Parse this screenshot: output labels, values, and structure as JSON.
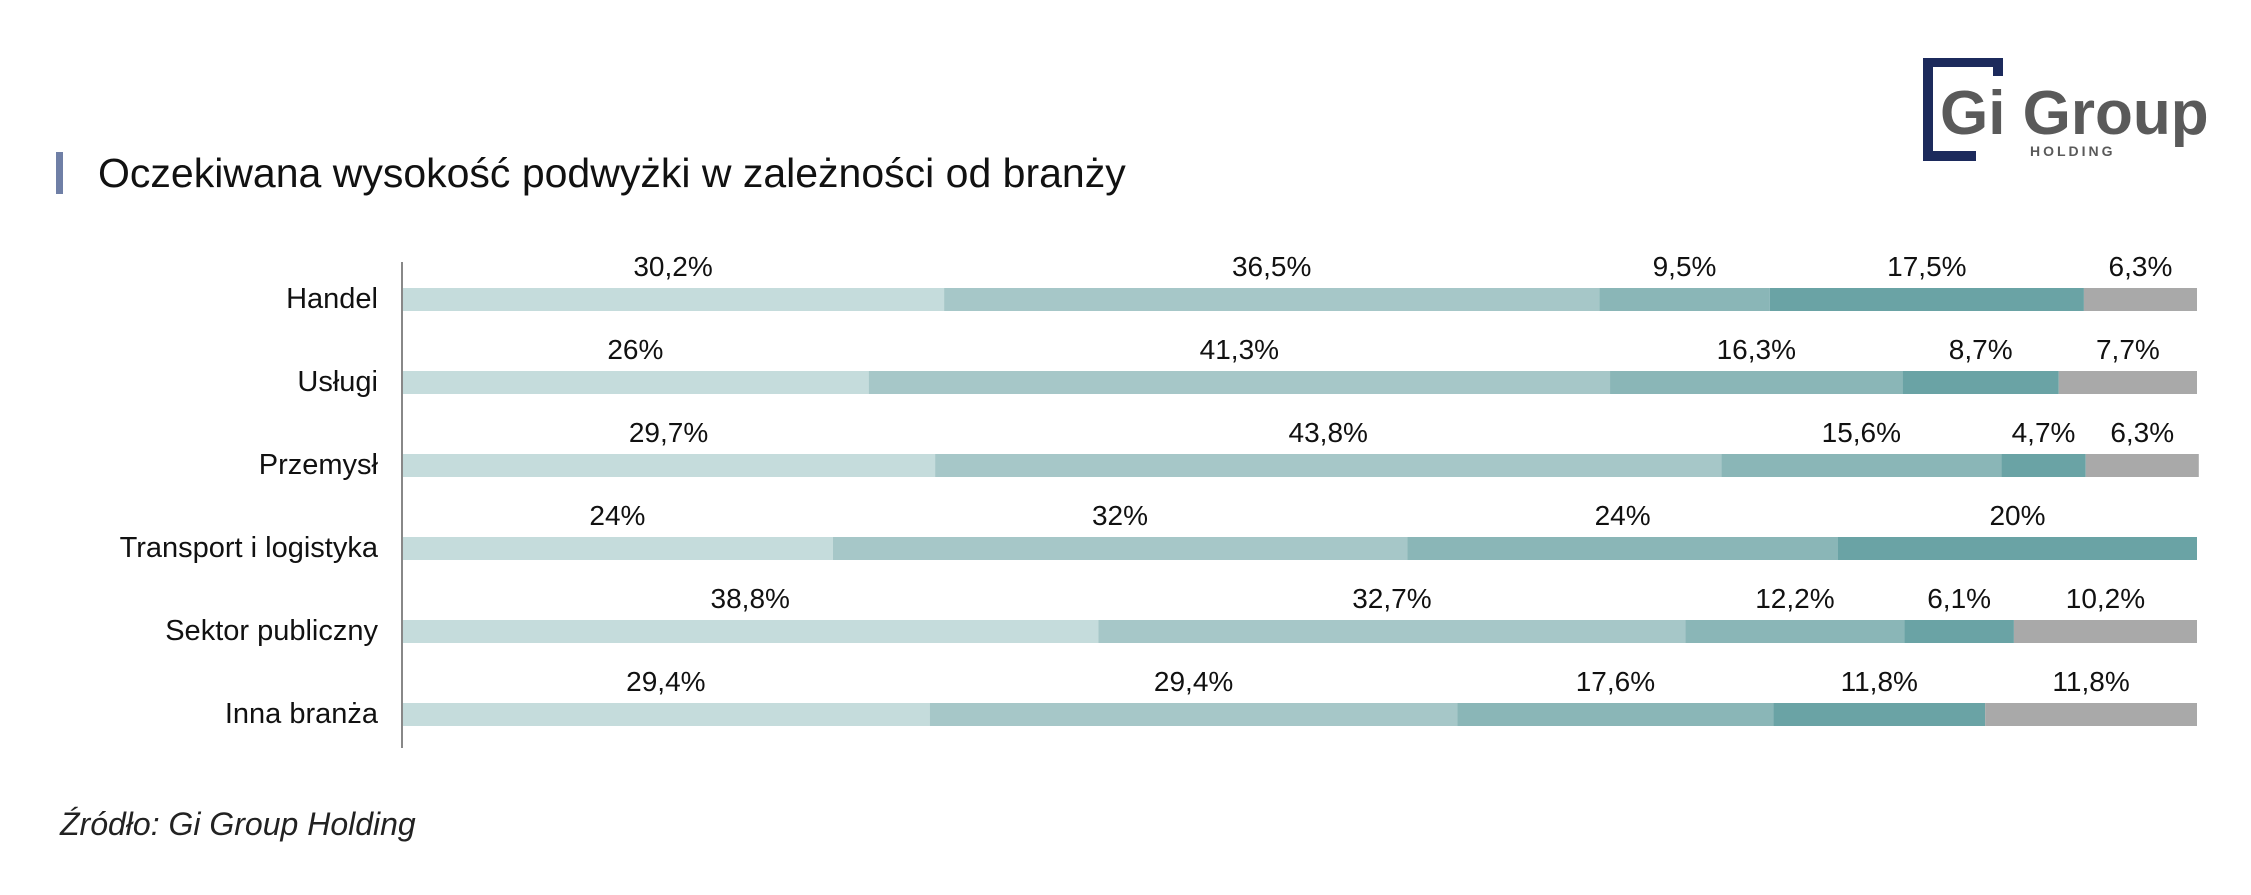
{
  "title": "Oczekiwana wysokość podwyżki w zależności od branży",
  "source": "Źródło: Gi Group Holding",
  "logo": {
    "main": "Gi Group",
    "sub": "HOLDING",
    "frame_color": "#1c2a5c",
    "text_color": "#5a5a5a"
  },
  "colors": {
    "title_accent": "#6f7fa6",
    "axis": "#888888"
  },
  "chart_data": {
    "type": "bar",
    "orientation": "horizontal",
    "stacked": true,
    "normalized_to": 100,
    "categories": [
      "Handel",
      "Usługi",
      "Przemysł",
      "Transport i logistyka",
      "Sektor publiczny",
      "Inna branża"
    ],
    "series": [
      {
        "color": "#c5dcdc",
        "values": [
          30.2,
          26,
          29.7,
          24,
          38.8,
          29.4
        ],
        "labels": [
          "30,2%",
          "26%",
          "29,7%",
          "24%",
          "38,8%",
          "29,4%"
        ]
      },
      {
        "color": "#a6c7c8",
        "values": [
          36.5,
          41.3,
          43.8,
          32,
          32.7,
          29.4
        ],
        "labels": [
          "36,5%",
          "41,3%",
          "43,8%",
          "32%",
          "32,7%",
          "29,4%"
        ]
      },
      {
        "color": "#8ab6b7",
        "values": [
          9.5,
          16.3,
          15.6,
          24,
          12.2,
          17.6
        ],
        "labels": [
          "9,5%",
          "16,3%",
          "15,6%",
          "24%",
          "12,2%",
          "17,6%"
        ]
      },
      {
        "color": "#6aa3a5",
        "values": [
          17.5,
          8.7,
          4.7,
          20,
          6.1,
          11.8
        ],
        "labels": [
          "17,5%",
          "8,7%",
          "4,7%",
          "20%",
          "6,1%",
          "11,8%"
        ]
      },
      {
        "color": "#a9a9a9",
        "values": [
          6.3,
          7.7,
          6.3,
          0,
          10.2,
          11.8
        ],
        "labels": [
          "6,3%",
          "7,7%",
          "6,3%",
          "",
          "10,2%",
          "11,8%"
        ]
      }
    ],
    "legend": "none",
    "grid": false
  }
}
